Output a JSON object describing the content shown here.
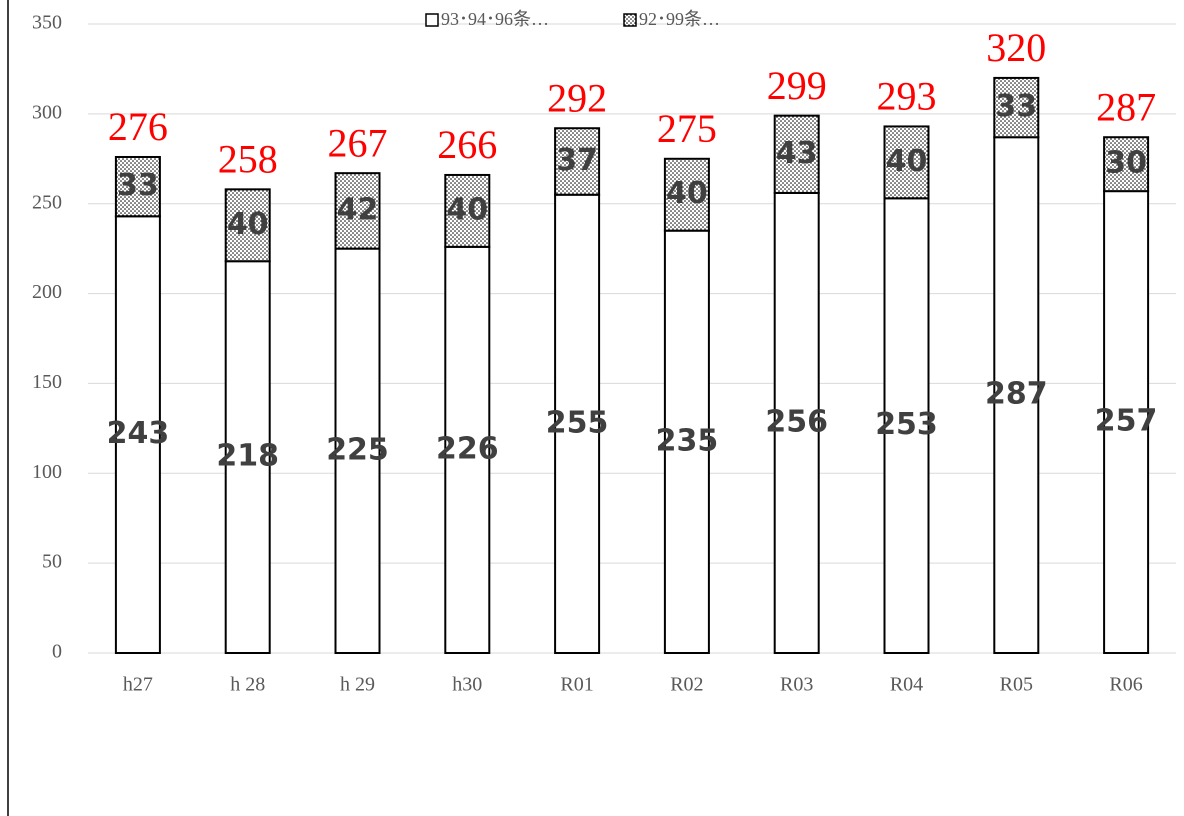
{
  "chart_data": {
    "type": "stacked_bar",
    "categories": [
      "h27",
      "h 28",
      "h 29",
      "h30",
      "R01",
      "R02",
      "R03",
      "R04",
      "R05",
      "R06"
    ],
    "series": [
      {
        "name": "93･94･96条…",
        "color": "#ffffff",
        "values": [
          243,
          218,
          225,
          226,
          255,
          235,
          256,
          253,
          287,
          257
        ]
      },
      {
        "name": "92･99条…",
        "color": "#000000",
        "values": [
          33,
          40,
          42,
          40,
          37,
          40,
          43,
          40,
          33,
          30
        ]
      }
    ],
    "total_labels": [
      276,
      258,
      267,
      266,
      292,
      275,
      299,
      293,
      320,
      287
    ],
    "ylim": [
      0,
      350
    ],
    "yticks": [
      0,
      50,
      100,
      150,
      200,
      250,
      300,
      350
    ],
    "grid": true,
    "legend": "top"
  }
}
